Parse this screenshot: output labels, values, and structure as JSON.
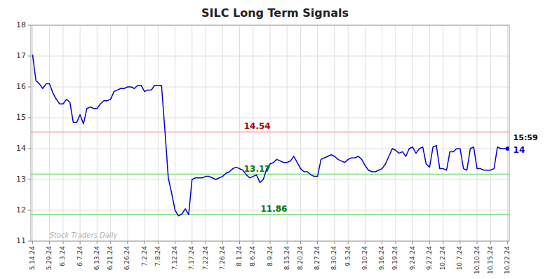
{
  "chart_data": {
    "type": "line",
    "title": "SILC Long Term Signals",
    "color": "#0000cc",
    "grid": true,
    "ylim": [
      11,
      18
    ],
    "yticks": [
      11,
      12,
      13,
      14,
      15,
      16,
      17,
      18
    ],
    "categories": [
      "5.14.24",
      null,
      null,
      null,
      null,
      "5.29.24",
      null,
      null,
      null,
      "6.3.24",
      null,
      null,
      null,
      null,
      "6.7.24",
      null,
      null,
      null,
      null,
      "6.13.24",
      null,
      null,
      null,
      "6.21.24",
      null,
      null,
      null,
      null,
      "6.26.24",
      null,
      null,
      null,
      null,
      "7.2.24",
      null,
      null,
      null,
      "7.8.24",
      null,
      null,
      null,
      null,
      "7.12.24",
      null,
      null,
      null,
      null,
      "7.17.24",
      null,
      null,
      null,
      "7.22.24",
      null,
      null,
      null,
      null,
      "7.26.24",
      null,
      null,
      null,
      null,
      "8.1.24",
      null,
      null,
      null,
      "8.6.24",
      null,
      null,
      null,
      null,
      "8.9.24",
      null,
      null,
      null,
      null,
      "8.15.24",
      null,
      null,
      null,
      "8.20.24",
      null,
      null,
      null,
      null,
      "8.27.24",
      null,
      null,
      null,
      null,
      "8.30.24",
      null,
      null,
      null,
      "9.5.24",
      null,
      null,
      null,
      null,
      "9.10.24",
      null,
      null,
      null,
      null,
      "9.16.24",
      null,
      null,
      null,
      "9.19.24",
      null,
      null,
      null,
      null,
      "9.24.24",
      null,
      null,
      null,
      null,
      "9.27.24",
      null,
      null,
      null,
      "10.2.24",
      null,
      null,
      null,
      null,
      "10.7.24",
      null,
      null,
      null,
      null,
      "10.10.24",
      null,
      null,
      null,
      "10.15.24",
      null,
      null,
      null,
      null,
      "10.22.24"
    ],
    "values": [
      17.05,
      16.2,
      16.1,
      15.95,
      16.1,
      16.1,
      15.8,
      15.6,
      15.45,
      15.45,
      15.6,
      15.5,
      14.85,
      14.85,
      15.1,
      14.8,
      15.3,
      15.35,
      15.3,
      15.3,
      15.45,
      15.55,
      15.55,
      15.6,
      15.85,
      15.9,
      15.95,
      15.95,
      16.0,
      16.0,
      15.95,
      16.05,
      16.05,
      15.85,
      15.9,
      15.9,
      16.05,
      16.05,
      16.05,
      14.6,
      13.05,
      12.55,
      12.0,
      11.82,
      11.88,
      12.05,
      11.86,
      13.0,
      13.05,
      13.05,
      13.05,
      13.1,
      13.1,
      13.05,
      13.0,
      13.05,
      13.1,
      13.2,
      13.25,
      13.35,
      13.4,
      13.35,
      13.3,
      13.15,
      13.05,
      13.1,
      13.15,
      12.9,
      13.0,
      13.35,
      13.5,
      13.55,
      13.65,
      13.6,
      13.55,
      13.55,
      13.6,
      13.75,
      13.55,
      13.35,
      13.25,
      13.25,
      13.15,
      13.1,
      13.1,
      13.65,
      13.7,
      13.75,
      13.8,
      13.75,
      13.65,
      13.6,
      13.55,
      13.65,
      13.7,
      13.7,
      13.75,
      13.65,
      13.45,
      13.3,
      13.25,
      13.25,
      13.3,
      13.35,
      13.5,
      13.75,
      14.0,
      13.95,
      13.85,
      13.9,
      13.75,
      14.0,
      14.05,
      13.85,
      14.0,
      14.05,
      13.5,
      13.4,
      14.05,
      14.1,
      13.35,
      13.35,
      13.3,
      13.9,
      13.9,
      14.0,
      14.0,
      13.35,
      13.3,
      14.0,
      14.05,
      13.35,
      13.35,
      13.3,
      13.3,
      13.3,
      13.35,
      14.05,
      14.0,
      14.0,
      14.0
    ],
    "lines": [
      {
        "value": 14.54,
        "label": "14.54",
        "color": "#ffaaaa",
        "label_color": "#aa0000"
      },
      {
        "value": 13.17,
        "label": "13.17",
        "color": "#77dd77",
        "label_color": "#007700"
      },
      {
        "value": 11.86,
        "label": "11.86",
        "color": "#77dd77",
        "label_color": "#007700"
      }
    ],
    "annotations": [
      {
        "text": "Stock Traders Daily",
        "color": "#b0b0b0"
      }
    ],
    "end_labels": {
      "time": "15:59",
      "price": "14"
    }
  }
}
